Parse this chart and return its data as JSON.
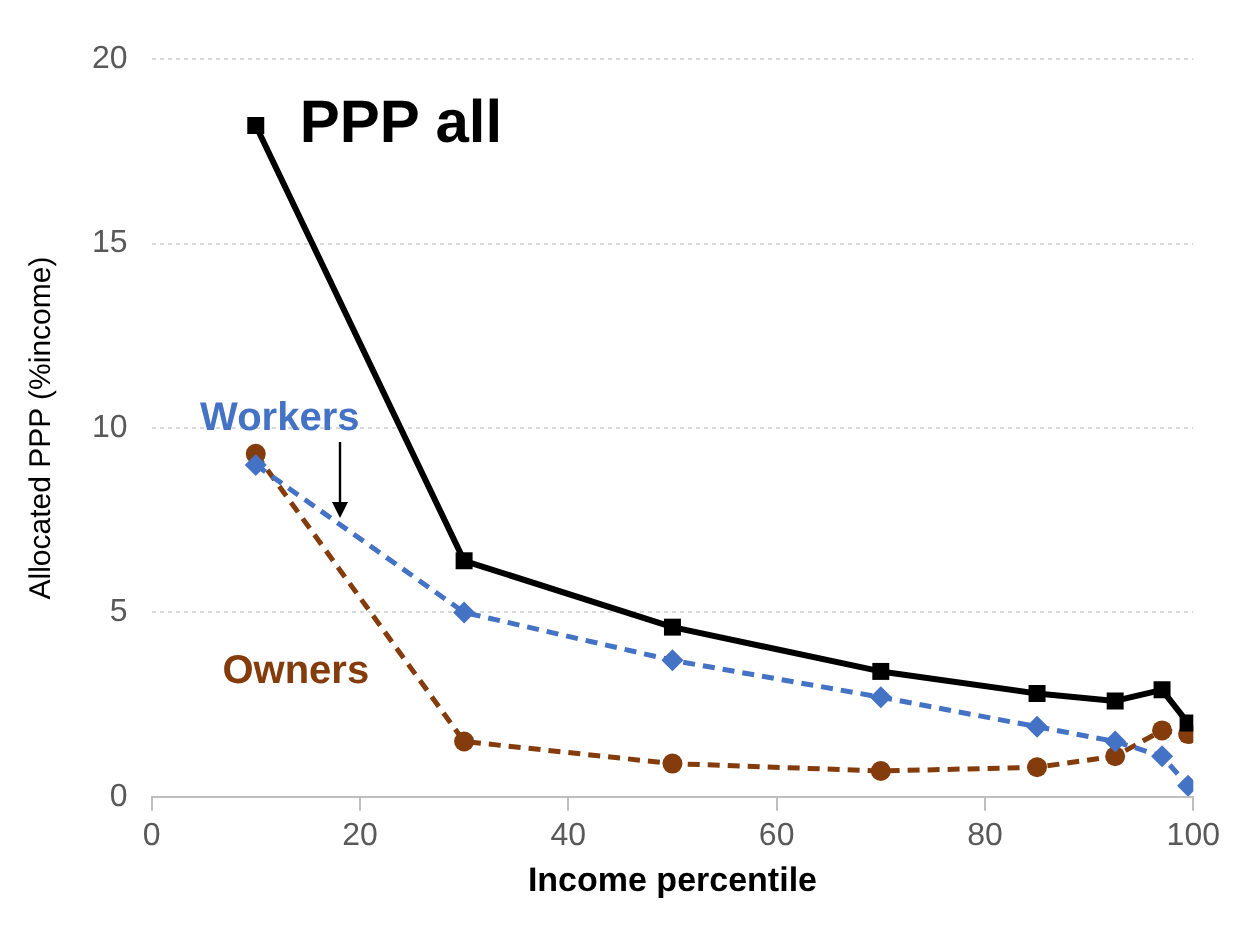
{
  "chart_data": {
    "type": "line",
    "xlabel": "Income percentile",
    "ylabel": "Allocated PPP (%income)",
    "xlim": [
      0,
      100
    ],
    "xticks": [
      0,
      20,
      40,
      60,
      80,
      100
    ],
    "ylim": [
      0,
      20
    ],
    "yticks": [
      0,
      5,
      10,
      15,
      20
    ],
    "grid": "y",
    "legend": false,
    "series": [
      {
        "name": "PPP all",
        "color": "#000000",
        "marker": "square",
        "line_style": "solid",
        "x": [
          10,
          30,
          50,
          70,
          85,
          92.5,
          97,
          99.5
        ],
        "values": [
          18.2,
          6.4,
          4.6,
          3.4,
          2.8,
          2.6,
          2.9,
          2.0
        ]
      },
      {
        "name": "Workers",
        "color": "#4472c4",
        "marker": "diamond",
        "line_style": "dashed",
        "x": [
          10,
          30,
          50,
          70,
          85,
          92.5,
          97,
          99.5
        ],
        "values": [
          9.0,
          5.0,
          3.7,
          2.7,
          1.9,
          1.5,
          1.1,
          0.3
        ]
      },
      {
        "name": "Owners",
        "color": "#843c0c",
        "marker": "circle",
        "line_style": "dashed",
        "x": [
          10,
          30,
          50,
          70,
          85,
          92.5,
          97,
          99.5
        ],
        "values": [
          9.3,
          1.5,
          0.9,
          0.7,
          0.8,
          1.1,
          1.8,
          1.7
        ]
      }
    ]
  }
}
